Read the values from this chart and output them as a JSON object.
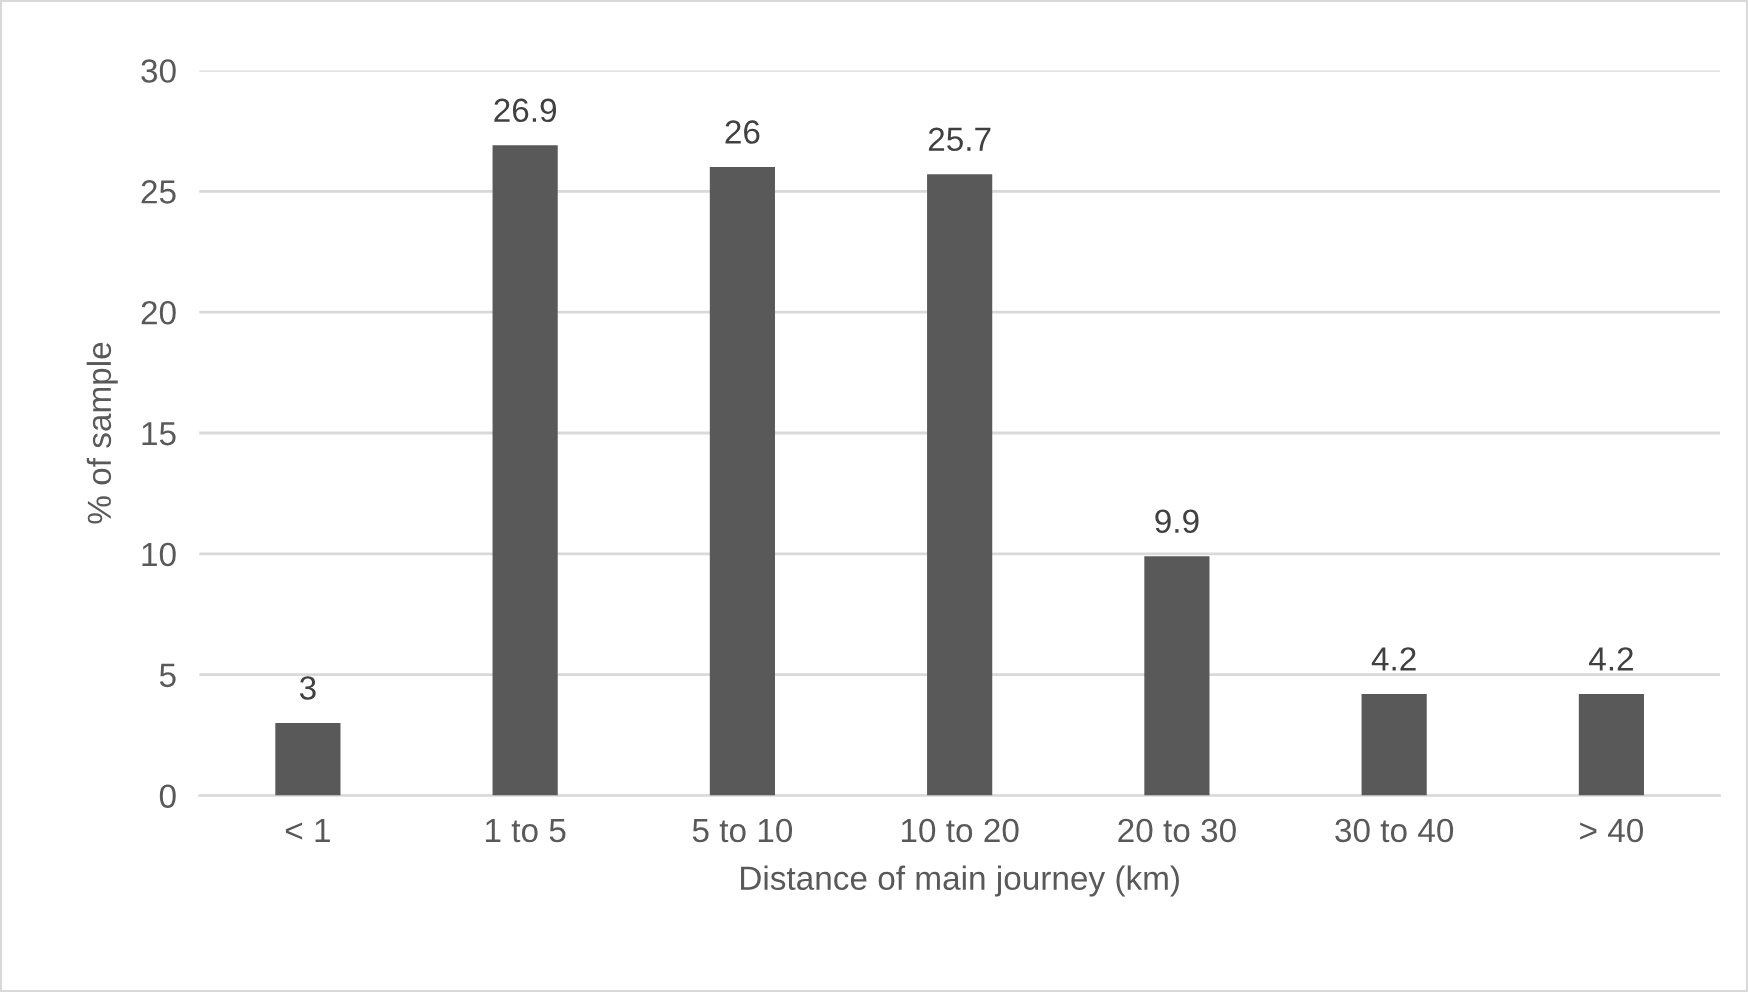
{
  "chart_data": {
    "type": "bar",
    "xlabel": "Distance of main journey (km)",
    "ylabel": "% of sample",
    "categories": [
      "< 1",
      "1 to 5",
      "5 to 10",
      "10 to 20",
      "20 to 30",
      "30 to 40",
      "> 40"
    ],
    "values": [
      3,
      26.9,
      26,
      25.7,
      9.9,
      4.2,
      4.2
    ],
    "color": "#595959",
    "ylim": [
      0,
      30
    ],
    "yticks": [
      0,
      5,
      10,
      15,
      20,
      25,
      30
    ],
    "grid": "y",
    "data_labels": true
  }
}
